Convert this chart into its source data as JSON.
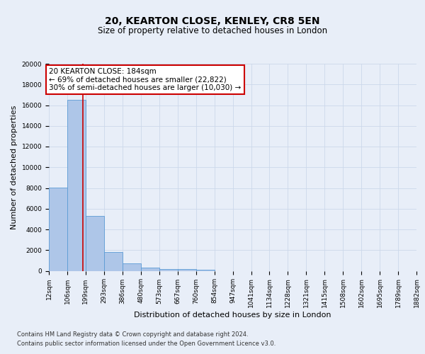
{
  "title": "20, KEARTON CLOSE, KENLEY, CR8 5EN",
  "subtitle": "Size of property relative to detached houses in London",
  "xlabel": "Distribution of detached houses by size in London",
  "ylabel": "Number of detached properties",
  "bin_labels": [
    "12sqm",
    "106sqm",
    "199sqm",
    "293sqm",
    "386sqm",
    "480sqm",
    "573sqm",
    "667sqm",
    "760sqm",
    "854sqm",
    "947sqm",
    "1041sqm",
    "1134sqm",
    "1228sqm",
    "1321sqm",
    "1415sqm",
    "1508sqm",
    "1602sqm",
    "1695sqm",
    "1789sqm",
    "1882sqm"
  ],
  "bin_edges": [
    12,
    106,
    199,
    293,
    386,
    480,
    573,
    667,
    760,
    854,
    947,
    1041,
    1134,
    1228,
    1321,
    1415,
    1508,
    1602,
    1695,
    1789,
    1882
  ],
  "bar_heights": [
    8050,
    16500,
    5300,
    1800,
    700,
    300,
    200,
    150,
    100,
    0,
    0,
    0,
    0,
    0,
    0,
    0,
    0,
    0,
    0,
    0
  ],
  "bar_color": "#aec6e8",
  "bar_edgecolor": "#5b9bd5",
  "property_size": 184,
  "vline_color": "#cc0000",
  "annotation_line1": "20 KEARTON CLOSE: 184sqm",
  "annotation_line2": "← 69% of detached houses are smaller (22,822)",
  "annotation_line3": "30% of semi-detached houses are larger (10,030) →",
  "annotation_box_facecolor": "#ffffff",
  "annotation_box_edgecolor": "#cc0000",
  "ylim": [
    0,
    20000
  ],
  "yticks": [
    0,
    2000,
    4000,
    6000,
    8000,
    10000,
    12000,
    14000,
    16000,
    18000,
    20000
  ],
  "grid_color": "#ccd8ea",
  "background_color": "#e8eef8",
  "footer_line1": "Contains HM Land Registry data © Crown copyright and database right 2024.",
  "footer_line2": "Contains public sector information licensed under the Open Government Licence v3.0.",
  "title_fontsize": 10,
  "subtitle_fontsize": 8.5,
  "axis_ylabel_fontsize": 8,
  "axis_xlabel_fontsize": 8,
  "tick_fontsize": 6.5,
  "annotation_fontsize": 7.5,
  "footer_fontsize": 6
}
